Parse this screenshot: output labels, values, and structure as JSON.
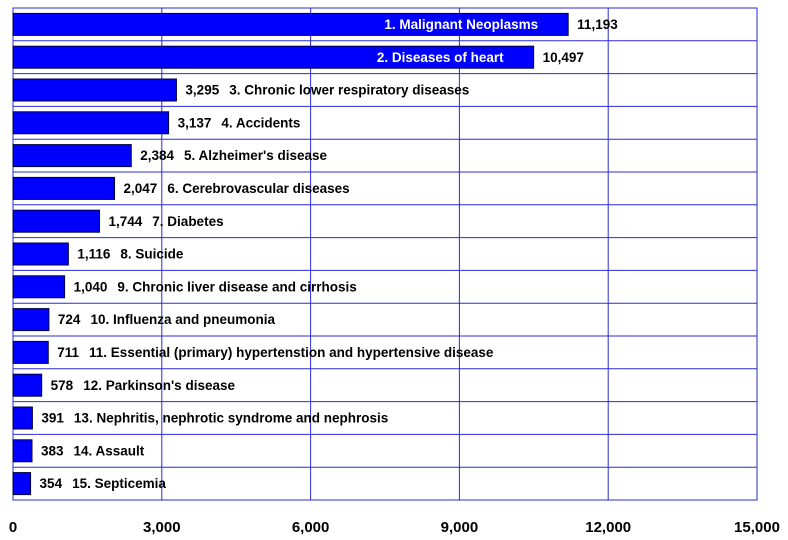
{
  "chart_data": {
    "type": "bar",
    "orientation": "horizontal",
    "categories": [
      "1. Malignant Neoplasms",
      "2. Diseases of heart",
      "3. Chronic lower respiratory diseases",
      "4. Accidents",
      "5. Alzheimer's disease",
      "6. Cerebrovascular diseases",
      "7. Diabetes",
      "8. Suicide",
      "9. Chronic liver disease and cirrhosis",
      "10. Influenza and pneumonia",
      "11. Essential (primary) hypertenstion and hypertensive disease",
      "12. Parkinson's disease",
      "13. Nephritis, nephrotic syndrome and nephrosis",
      "14. Assault",
      "15. Septicemia"
    ],
    "values": [
      11193,
      10497,
      3295,
      3137,
      2384,
      2047,
      1744,
      1116,
      1040,
      724,
      711,
      578,
      391,
      383,
      354
    ],
    "value_labels": [
      "11,193",
      "10,497",
      "3,295",
      "3,137",
      "2,384",
      "2,047",
      "1,744",
      "1,116",
      "1,040",
      "724",
      "711",
      "578",
      "391",
      "383",
      "354"
    ],
    "color": "#0000ff",
    "xlim": [
      0,
      15000
    ],
    "xticks": [
      0,
      {
        "value": 3000,
        "label": "3,000"
      },
      {
        "value": 6000,
        "label": "6,000"
      },
      {
        "value": 9000,
        "label": "9,000"
      },
      {
        "value": 12000,
        "label": "12,000"
      },
      {
        "value": 15000,
        "label": "15,000"
      }
    ],
    "grid": true
  }
}
